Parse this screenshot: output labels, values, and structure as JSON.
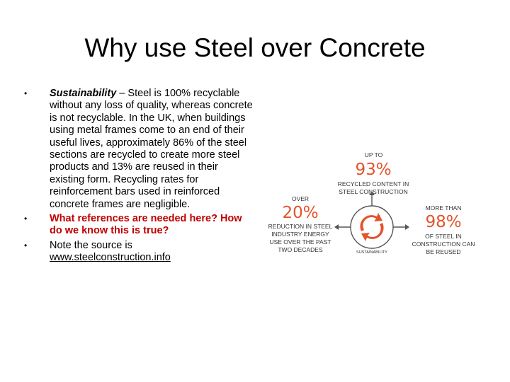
{
  "slide": {
    "title": "Why use Steel over Concrete"
  },
  "bullets": [
    {
      "bullet_char": "•",
      "term": "Sustainability",
      "text": " – Steel is 100% recyclable without any loss of quality, whereas concrete is not recyclable. In the UK, when buildings using metal frames come to an end of their useful lives, approximately 86% of the steel sections are recycled to create more steel products and 13% are reused in their existing form. Recycling rates for reinforcement bars used in reinforced concrete frames are negligible."
    },
    {
      "bullet_char": "•",
      "text": "What references are needed here? How do we know this is true?"
    },
    {
      "bullet_char": "•",
      "text": "Note the source is ",
      "link": "www.steelconstruction.info"
    }
  ],
  "infographic": {
    "top": {
      "label_above": "UP TO",
      "value": "93%",
      "label_below_1": "RECYCLED CONTENT IN",
      "label_below_2": "STEEL CONSTRUCTION"
    },
    "left": {
      "label_above": "OVER",
      "value": "20%",
      "line_1": "REDUCTION IN STEEL",
      "line_2": "INDUSTRY ENERGY",
      "line_3": "USE OVER THE PAST",
      "line_4": "TWO DECADES"
    },
    "right": {
      "label_above": "MORE THAN",
      "value": "98%",
      "line_1": "OF STEEL IN",
      "line_2": "CONSTRUCTION CAN",
      "line_3": "BE REUSED"
    },
    "center_label": "SUSTAINABILITY",
    "colors": {
      "accent": "#e5532b",
      "ring": "#555555",
      "text": "#333333"
    },
    "icons": [
      "recycle-arrows-icon",
      "arrow-up-icon",
      "arrow-left-icon",
      "arrow-right-icon"
    ]
  }
}
